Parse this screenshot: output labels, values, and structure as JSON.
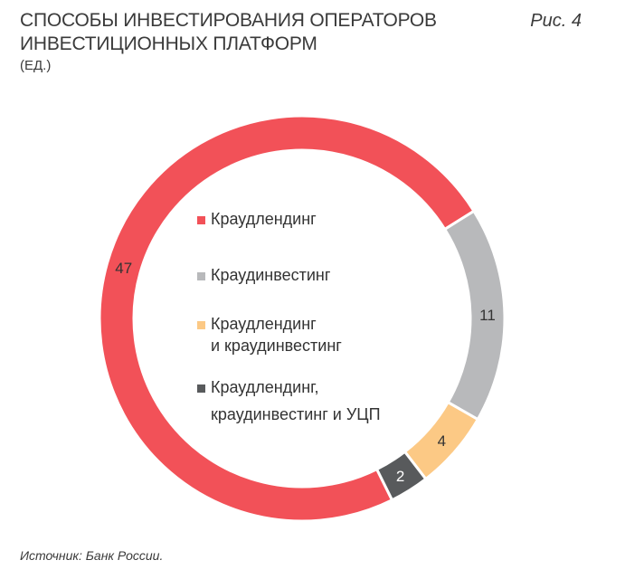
{
  "header": {
    "title_line1": "СПОСОБЫ ИНВЕСТИРОВАНИЯ ОПЕРАТОРОВ",
    "title_line2": "ИНВЕСТИЦИОННЫХ ПЛАТФОРМ",
    "unit": "(ЕД.)",
    "figure_label": "Рис. 4"
  },
  "footer": {
    "source": "Источник: Банк России."
  },
  "chart_data": {
    "type": "pie",
    "variant": "donut",
    "title": "СПОСОБЫ ИНВЕСТИРОВАНИЯ ОПЕРАТОРОВ ИНВЕСТИЦИОННЫХ ПЛАТФОРМ",
    "unit": "ед.",
    "legend_position": "center",
    "slices": [
      {
        "label_lines": [
          "Краудлендинг"
        ],
        "value": 47,
        "color": "#f25158"
      },
      {
        "label_lines": [
          "Краудинвестинг"
        ],
        "value": 11,
        "color": "#b8b9bb"
      },
      {
        "label_lines": [
          "Краудлендинг",
          "и краудинвестинг"
        ],
        "value": 4,
        "color": "#fcc985"
      },
      {
        "label_lines": [
          "Краудлендинг,",
          "краудинвестинг и УЦП"
        ],
        "value": 2,
        "color": "#585a5c"
      }
    ]
  }
}
